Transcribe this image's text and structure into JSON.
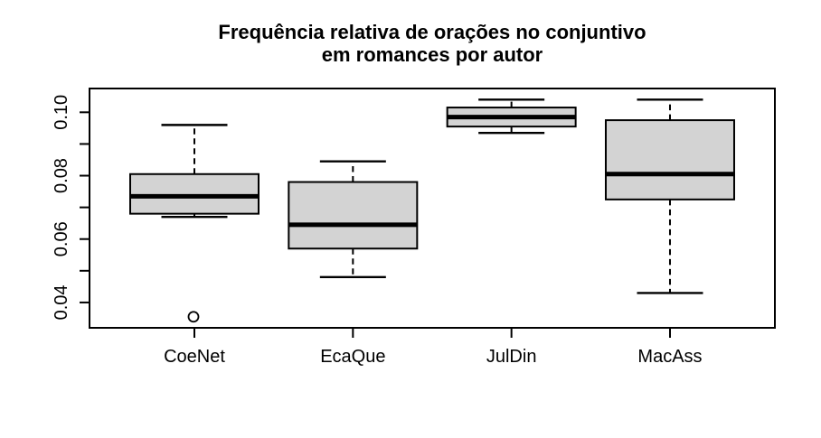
{
  "chart_data": {
    "type": "boxplot",
    "title": "Frequência relativa de orações no conjuntivo em romances por autor",
    "title_lines": [
      "Frequência relativa de orações no conjuntivo",
      "em romances por autor"
    ],
    "categories": [
      "CoeNet",
      "EcaQue",
      "JulDin",
      "MacAss"
    ],
    "series": [
      {
        "name": "CoeNet",
        "whisker_low": 0.067,
        "q1": 0.068,
        "median": 0.0735,
        "q3": 0.0805,
        "whisker_high": 0.096,
        "outliers": [
          0.0355
        ]
      },
      {
        "name": "EcaQue",
        "whisker_low": 0.048,
        "q1": 0.057,
        "median": 0.0645,
        "q3": 0.078,
        "whisker_high": 0.0845,
        "outliers": []
      },
      {
        "name": "JulDin",
        "whisker_low": 0.0935,
        "q1": 0.0955,
        "median": 0.0985,
        "q3": 0.1015,
        "whisker_high": 0.104,
        "outliers": []
      },
      {
        "name": "MacAss",
        "whisker_low": 0.043,
        "q1": 0.0725,
        "median": 0.0805,
        "q3": 0.0975,
        "whisker_high": 0.104,
        "outliers": []
      }
    ],
    "y_axis": {
      "tick_values": [
        0.04,
        0.05,
        0.06,
        0.07,
        0.08,
        0.09,
        0.1
      ],
      "labeled_tick_values": [
        0.04,
        0.06,
        0.08,
        0.1
      ],
      "labeled_tick_texts": [
        "0.04",
        "0.06",
        "0.08",
        "0.10"
      ],
      "ylim": [
        0.032,
        0.1075
      ]
    },
    "xlabel": "",
    "ylabel": "",
    "legend": "none",
    "grid": false,
    "colors": {
      "box_fill": "#d3d3d3",
      "line": "#000000",
      "background": "#ffffff"
    }
  }
}
